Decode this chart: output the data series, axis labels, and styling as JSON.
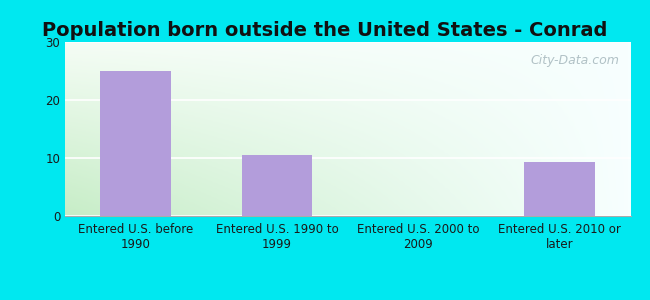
{
  "title": "Population born outside the United States - Conrad",
  "categories": [
    "Entered U.S. before\n1990",
    "Entered U.S. 1990 to\n1999",
    "Entered U.S. 2000 to\n2009",
    "Entered U.S. 2010 or\nlater"
  ],
  "values": [
    25.0,
    10.6,
    0,
    9.3
  ],
  "bar_color": "#b39ddb",
  "ylim": [
    0,
    30
  ],
  "yticks": [
    0,
    10,
    20,
    30
  ],
  "outer_bg": "#00e8f0",
  "grid_color": "#d0d0d0",
  "watermark": "City-Data.com",
  "title_fontsize": 14,
  "tick_fontsize": 8.5,
  "bar_width": 0.5,
  "plot_bg_left": "#c8e6c9",
  "plot_bg_right": "#f8ffff"
}
